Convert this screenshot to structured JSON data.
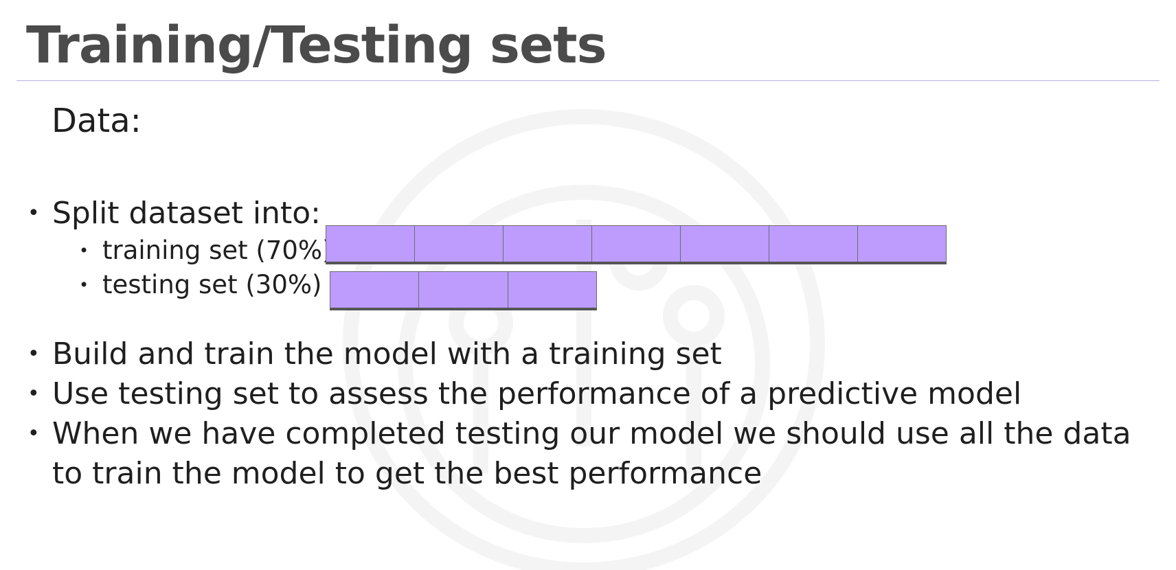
{
  "slide": {
    "title": "Training/Testing sets",
    "subheading": "Data:",
    "split": {
      "label": "Split dataset into:",
      "training": {
        "label": "training set (70%)",
        "cells": 7
      },
      "testing": {
        "label": "testing set (30%)",
        "cells": 3
      }
    },
    "bullets": [
      "Build and train the model with a training set",
      "Use testing set to assess the performance of a predictive model",
      "When we have completed testing our model we should use all the data",
      "to train the model to get the best performance"
    ],
    "bullet_symbol": "•",
    "colors": {
      "title": "#4b4b4b",
      "bar_fill": "#bd9cfe",
      "rule": "#b3aee6"
    }
  }
}
